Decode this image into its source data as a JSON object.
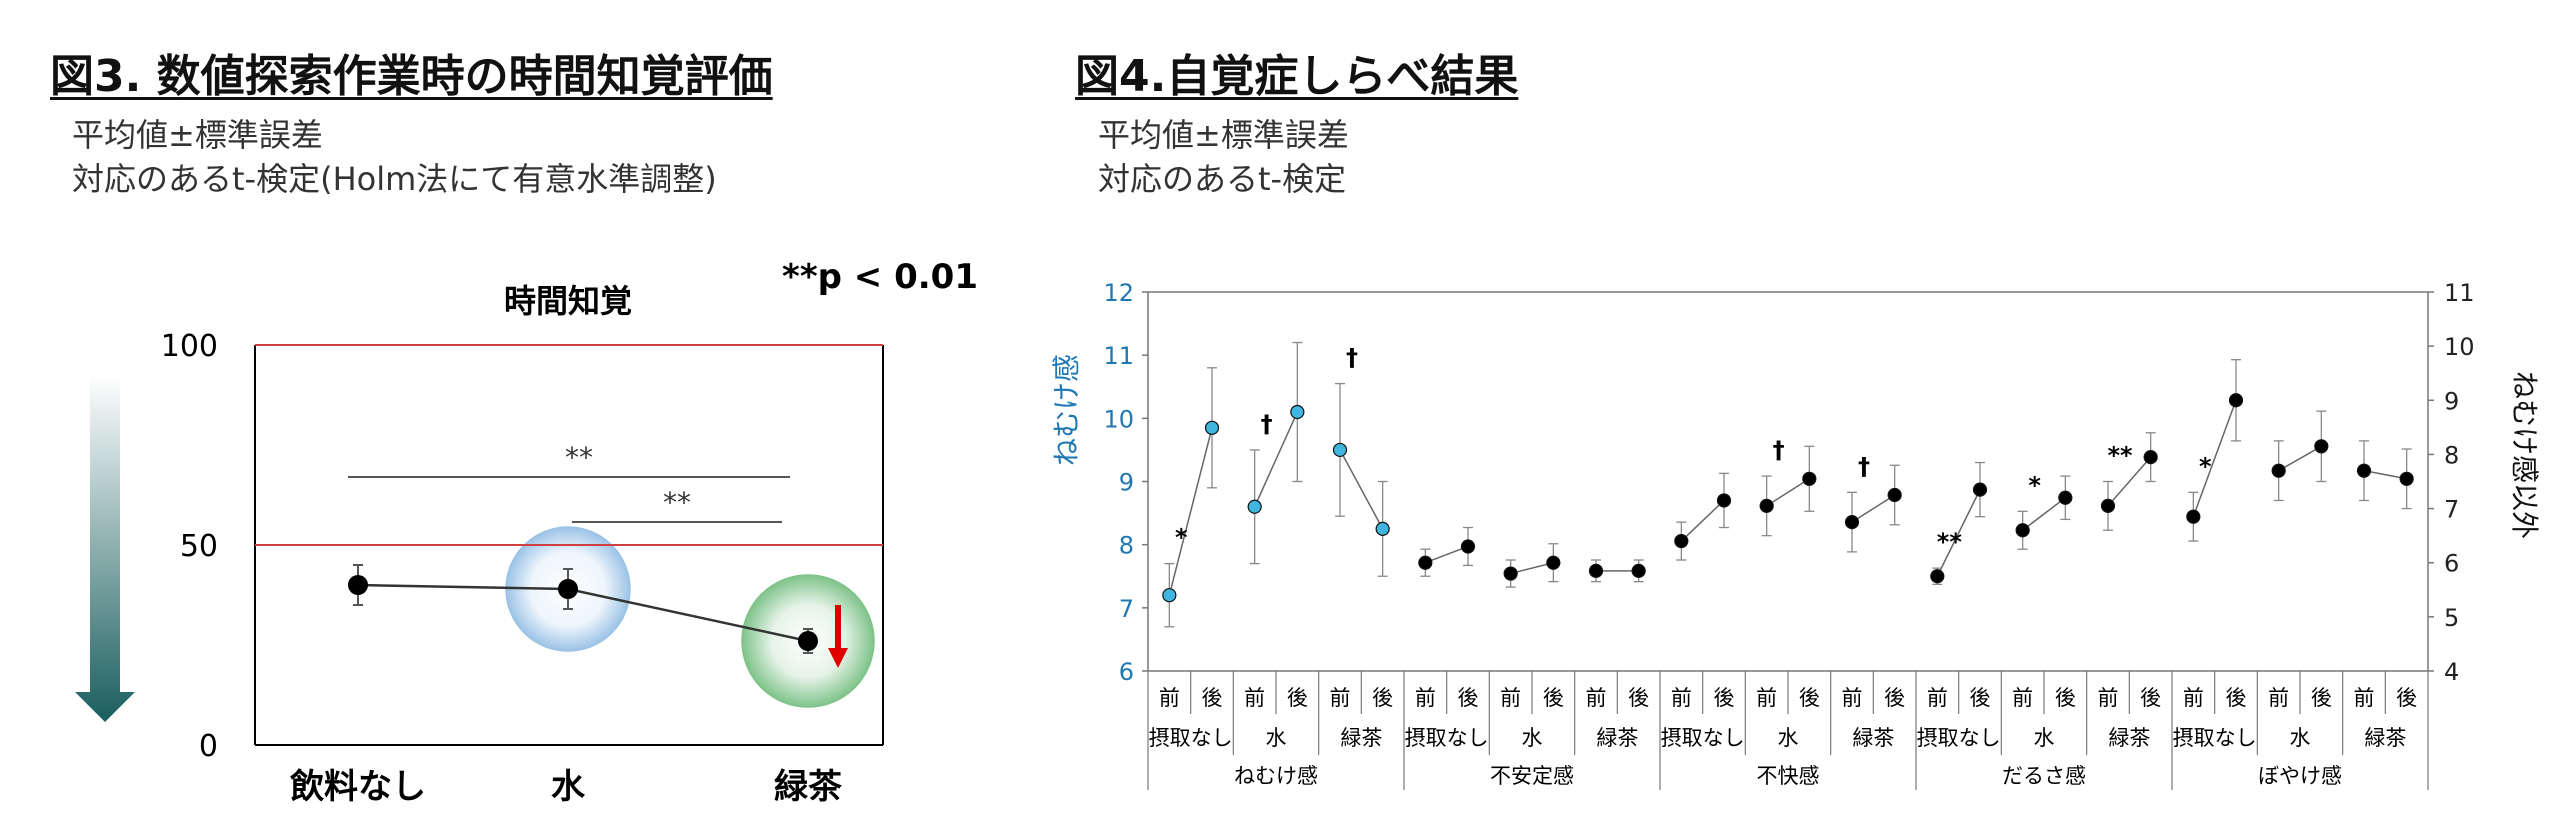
{
  "fig3": {
    "title": "図3. 数値探索作業時の時間知覚評価",
    "notes": [
      "平均値±標準誤差",
      "対応のあるt-検定(Holm法にて有意水準調整)"
    ],
    "sig_legend": "**p < 0.01",
    "arrow_color": "#1a5e5e"
  },
  "fig4": {
    "title": "図4.自覚症しらべ結果",
    "notes": [
      "平均値±標準誤差",
      "対応のあるt-検定"
    ]
  },
  "chart_data": [
    {
      "type": "line",
      "title": "時間知覚",
      "categories": [
        "飲料なし",
        "水",
        "緑茶"
      ],
      "values": [
        40,
        39,
        26
      ],
      "errors": [
        5,
        5,
        3
      ],
      "ylim": [
        0,
        100
      ],
      "yticks": [
        0,
        50,
        100
      ],
      "reference_lines": [
        {
          "value": 50,
          "color": "#d04040"
        },
        {
          "value": 100,
          "color": "#d04040"
        }
      ],
      "significance": [
        {
          "from": "飲料なし",
          "to": "緑茶",
          "label": "**"
        },
        {
          "from": "水",
          "to": "緑茶",
          "label": "**"
        }
      ],
      "highlight_circles": [
        {
          "category": "水",
          "color": "#9cc3e6"
        },
        {
          "category": "緑茶",
          "color": "#7fc38a"
        }
      ],
      "down_arrow": {
        "category": "緑茶",
        "color": "#e00000"
      }
    },
    {
      "type": "line",
      "title": "",
      "left_axis": {
        "label": "ねむけ感",
        "ylim": [
          6,
          12
        ],
        "ticks": [
          6,
          7,
          8,
          9,
          10,
          11,
          12
        ],
        "color": "#1f78b4"
      },
      "right_axis": {
        "label": "ねむけ感以外",
        "ylim": [
          4,
          11
        ],
        "ticks": [
          4,
          5,
          6,
          7,
          8,
          9,
          10,
          11
        ]
      },
      "timepoints": [
        "前",
        "後"
      ],
      "conditions": [
        "摂取なし",
        "水",
        "緑茶"
      ],
      "groups": [
        {
          "name": "ねむけ感",
          "axis": "left",
          "marker_color": "#3fb6e0",
          "pairs": [
            {
              "condition": "摂取なし",
              "values": [
                7.2,
                9.85
              ],
              "errors": [
                0.5,
                0.95
              ],
              "sig": "*"
            },
            {
              "condition": "水",
              "values": [
                8.6,
                10.1
              ],
              "errors": [
                0.9,
                1.1
              ],
              "sig": "†"
            },
            {
              "condition": "緑茶",
              "values": [
                9.5,
                8.25
              ],
              "errors": [
                1.05,
                0.75
              ],
              "sig": "†"
            }
          ]
        },
        {
          "name": "不安定感",
          "axis": "right",
          "marker_color": "#000000",
          "pairs": [
            {
              "condition": "摂取なし",
              "values": [
                6.0,
                6.3
              ],
              "errors": [
                0.25,
                0.35
              ],
              "sig": ""
            },
            {
              "condition": "水",
              "values": [
                5.8,
                6.0
              ],
              "errors": [
                0.25,
                0.35
              ],
              "sig": ""
            },
            {
              "condition": "緑茶",
              "values": [
                5.85,
                5.85
              ],
              "errors": [
                0.2,
                0.2
              ],
              "sig": ""
            }
          ]
        },
        {
          "name": "不快感",
          "axis": "right",
          "marker_color": "#000000",
          "pairs": [
            {
              "condition": "摂取なし",
              "values": [
                6.4,
                7.15
              ],
              "errors": [
                0.35,
                0.5
              ],
              "sig": ""
            },
            {
              "condition": "水",
              "values": [
                7.05,
                7.55
              ],
              "errors": [
                0.55,
                0.6
              ],
              "sig": "†"
            },
            {
              "condition": "緑茶",
              "values": [
                6.75,
                7.25
              ],
              "errors": [
                0.55,
                0.55
              ],
              "sig": "†"
            }
          ]
        },
        {
          "name": "だるさ感",
          "axis": "right",
          "marker_color": "#000000",
          "pairs": [
            {
              "condition": "摂取なし",
              "values": [
                5.75,
                7.35
              ],
              "errors": [
                0.15,
                0.5
              ],
              "sig": "**"
            },
            {
              "condition": "水",
              "values": [
                6.6,
                7.2
              ],
              "errors": [
                0.35,
                0.4
              ],
              "sig": "*"
            },
            {
              "condition": "緑茶",
              "values": [
                7.05,
                7.95
              ],
              "errors": [
                0.45,
                0.45
              ],
              "sig": "**"
            }
          ]
        },
        {
          "name": "ぼやけ感",
          "axis": "right",
          "marker_color": "#000000",
          "pairs": [
            {
              "condition": "摂取なし",
              "values": [
                6.85,
                9.0
              ],
              "errors": [
                0.45,
                0.75
              ],
              "sig": "*"
            },
            {
              "condition": "水",
              "values": [
                7.7,
                8.15
              ],
              "errors": [
                0.55,
                0.65
              ],
              "sig": ""
            },
            {
              "condition": "緑茶",
              "values": [
                7.7,
                7.55
              ],
              "errors": [
                0.55,
                0.55
              ],
              "sig": ""
            }
          ]
        }
      ]
    }
  ]
}
